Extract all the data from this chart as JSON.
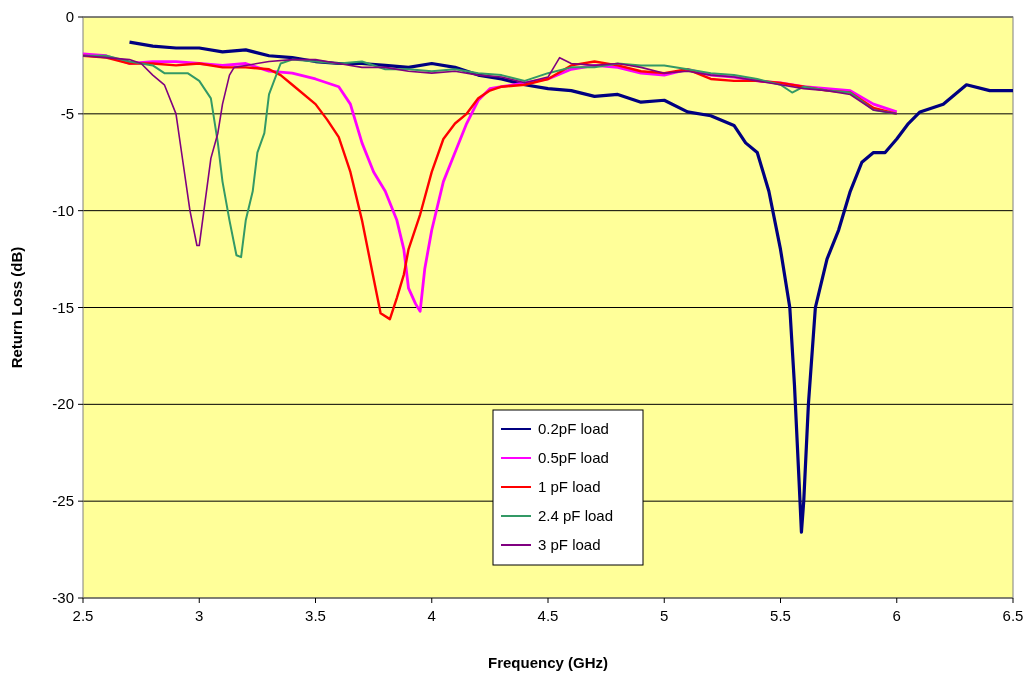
{
  "chart_data": {
    "type": "line",
    "xlabel": "Frequency (GHz)",
    "ylabel": "Return Loss (dB)",
    "xlim": [
      2.5,
      6.5
    ],
    "xticks": [
      2.5,
      3,
      3.5,
      4,
      4.5,
      5,
      5.5,
      6,
      6.5
    ],
    "ylim": [
      -30,
      0
    ],
    "yticks": [
      -30,
      -25,
      -20,
      -15,
      -10,
      -5,
      0
    ],
    "grid": "y",
    "legend": "bottom",
    "line_style": "solid",
    "marker": "none",
    "series": [
      {
        "name": "0.2pF load",
        "color": "#000080",
        "x": [
          2.7,
          2.8,
          2.9,
          3.0,
          3.1,
          3.2,
          3.3,
          3.4,
          3.5,
          3.6,
          3.7,
          3.8,
          3.9,
          4.0,
          4.1,
          4.2,
          4.3,
          4.4,
          4.5,
          4.6,
          4.7,
          4.8,
          4.9,
          5.0,
          5.1,
          5.2,
          5.3,
          5.35,
          5.4,
          5.45,
          5.5,
          5.54,
          5.56,
          5.58,
          5.59,
          5.6,
          5.62,
          5.65,
          5.7,
          5.75,
          5.8,
          5.85,
          5.9,
          5.95,
          6.0,
          6.05,
          6.1,
          6.2,
          6.3,
          6.4,
          6.5
        ],
        "values": [
          -1.3,
          -1.5,
          -1.6,
          -1.6,
          -1.8,
          -1.7,
          -2.0,
          -2.1,
          -2.3,
          -2.4,
          -2.4,
          -2.5,
          -2.6,
          -2.4,
          -2.6,
          -3.0,
          -3.2,
          -3.5,
          -3.7,
          -3.8,
          -4.1,
          -4.0,
          -4.4,
          -4.3,
          -4.9,
          -5.1,
          -5.6,
          -6.5,
          -7.0,
          -9.0,
          -12.0,
          -15.0,
          -19.0,
          -24.0,
          -26.6,
          -25.0,
          -20.0,
          -15.0,
          -12.5,
          -11.0,
          -9.0,
          -7.5,
          -7.0,
          -7.0,
          -6.3,
          -5.5,
          -4.9,
          -4.5,
          -3.5,
          -3.8,
          -3.8
        ]
      },
      {
        "name": "0.5pF load",
        "color": "#ff00ff",
        "x": [
          2.5,
          2.6,
          2.7,
          2.8,
          2.9,
          3.0,
          3.1,
          3.2,
          3.3,
          3.4,
          3.5,
          3.6,
          3.65,
          3.7,
          3.75,
          3.8,
          3.85,
          3.88,
          3.9,
          3.93,
          3.95,
          3.97,
          4.0,
          4.05,
          4.1,
          4.15,
          4.2,
          4.25,
          4.3,
          4.4,
          4.5,
          4.6,
          4.7,
          4.8,
          4.9,
          5.0,
          5.1,
          5.2,
          5.3,
          5.4,
          5.5,
          5.6,
          5.7,
          5.8,
          5.9,
          6.0
        ],
        "values": [
          -1.9,
          -2.0,
          -2.4,
          -2.3,
          -2.3,
          -2.4,
          -2.5,
          -2.4,
          -2.8,
          -2.9,
          -3.2,
          -3.6,
          -4.5,
          -6.5,
          -8.0,
          -9.0,
          -10.5,
          -12.0,
          -14.0,
          -14.8,
          -15.2,
          -13.0,
          -11.0,
          -8.5,
          -7.0,
          -5.5,
          -4.3,
          -3.7,
          -3.6,
          -3.4,
          -3.2,
          -2.7,
          -2.5,
          -2.6,
          -2.9,
          -3.0,
          -2.7,
          -3.0,
          -3.1,
          -3.3,
          -3.4,
          -3.6,
          -3.7,
          -3.8,
          -4.5,
          -4.9
        ]
      },
      {
        "name": "1 pF load",
        "color": "#ff0000",
        "x": [
          2.5,
          2.6,
          2.7,
          2.8,
          2.9,
          3.0,
          3.1,
          3.2,
          3.3,
          3.35,
          3.4,
          3.5,
          3.55,
          3.6,
          3.65,
          3.7,
          3.75,
          3.78,
          3.82,
          3.85,
          3.88,
          3.9,
          3.95,
          4.0,
          4.05,
          4.1,
          4.15,
          4.2,
          4.25,
          4.3,
          4.4,
          4.5,
          4.6,
          4.7,
          4.8,
          4.9,
          5.0,
          5.1,
          5.2,
          5.3,
          5.4,
          5.5,
          5.6,
          5.7,
          5.8,
          5.9,
          6.0
        ],
        "values": [
          -2.0,
          -2.1,
          -2.4,
          -2.4,
          -2.5,
          -2.4,
          -2.6,
          -2.6,
          -2.7,
          -3.0,
          -3.5,
          -4.5,
          -5.3,
          -6.2,
          -8.0,
          -10.5,
          -13.5,
          -15.3,
          -15.6,
          -14.5,
          -13.3,
          -12.0,
          -10.2,
          -8.0,
          -6.3,
          -5.5,
          -5.0,
          -4.2,
          -3.8,
          -3.6,
          -3.5,
          -3.2,
          -2.5,
          -2.3,
          -2.5,
          -2.8,
          -2.9,
          -2.7,
          -3.2,
          -3.3,
          -3.3,
          -3.4,
          -3.6,
          -3.8,
          -3.9,
          -4.7,
          -5.0
        ]
      },
      {
        "name": "2.4 pF load",
        "color": "#339966",
        "x": [
          2.5,
          2.6,
          2.7,
          2.8,
          2.85,
          2.9,
          2.95,
          3.0,
          3.05,
          3.08,
          3.1,
          3.13,
          3.16,
          3.18,
          3.2,
          3.23,
          3.25,
          3.28,
          3.3,
          3.35,
          3.4,
          3.5,
          3.6,
          3.7,
          3.8,
          3.9,
          4.0,
          4.1,
          4.2,
          4.3,
          4.4,
          4.5,
          4.6,
          4.7,
          4.8,
          4.9,
          5.0,
          5.1,
          5.2,
          5.3,
          5.4,
          5.5,
          5.55,
          5.6,
          5.7,
          5.8,
          5.9,
          6.0
        ],
        "values": [
          -2.0,
          -2.0,
          -2.3,
          -2.5,
          -2.9,
          -2.9,
          -2.9,
          -3.3,
          -4.2,
          -6.5,
          -8.5,
          -10.5,
          -12.3,
          -12.4,
          -10.5,
          -9.0,
          -7.0,
          -6.0,
          -4.0,
          -2.4,
          -2.2,
          -2.3,
          -2.4,
          -2.3,
          -2.7,
          -2.7,
          -2.8,
          -2.7,
          -2.9,
          -3.0,
          -3.3,
          -2.9,
          -2.6,
          -2.6,
          -2.4,
          -2.5,
          -2.5,
          -2.7,
          -2.9,
          -3.0,
          -3.2,
          -3.5,
          -3.9,
          -3.6,
          -3.8,
          -3.9,
          -4.8,
          -5.0
        ]
      },
      {
        "name": "3 pF load",
        "color": "#800080",
        "x": [
          2.5,
          2.6,
          2.7,
          2.75,
          2.8,
          2.85,
          2.9,
          2.93,
          2.96,
          2.99,
          3.0,
          3.02,
          3.05,
          3.08,
          3.1,
          3.13,
          3.15,
          3.2,
          3.3,
          3.4,
          3.5,
          3.6,
          3.7,
          3.8,
          3.9,
          4.0,
          4.1,
          4.2,
          4.3,
          4.4,
          4.5,
          4.55,
          4.6,
          4.7,
          4.8,
          4.9,
          5.0,
          5.1,
          5.2,
          5.3,
          5.4,
          5.5,
          5.6,
          5.7,
          5.8,
          5.9,
          6.0
        ],
        "values": [
          -2.0,
          -2.1,
          -2.2,
          -2.4,
          -3.0,
          -3.5,
          -5.0,
          -7.5,
          -10.0,
          -11.8,
          -11.8,
          -10.0,
          -7.3,
          -6.0,
          -4.5,
          -3.0,
          -2.6,
          -2.5,
          -2.3,
          -2.2,
          -2.2,
          -2.4,
          -2.6,
          -2.6,
          -2.8,
          -2.9,
          -2.8,
          -3.0,
          -3.1,
          -3.4,
          -3.1,
          -2.1,
          -2.4,
          -2.5,
          -2.4,
          -2.6,
          -2.9,
          -2.8,
          -3.0,
          -3.1,
          -3.3,
          -3.5,
          -3.7,
          -3.8,
          -4.0,
          -4.8,
          -5.0
        ]
      }
    ]
  }
}
